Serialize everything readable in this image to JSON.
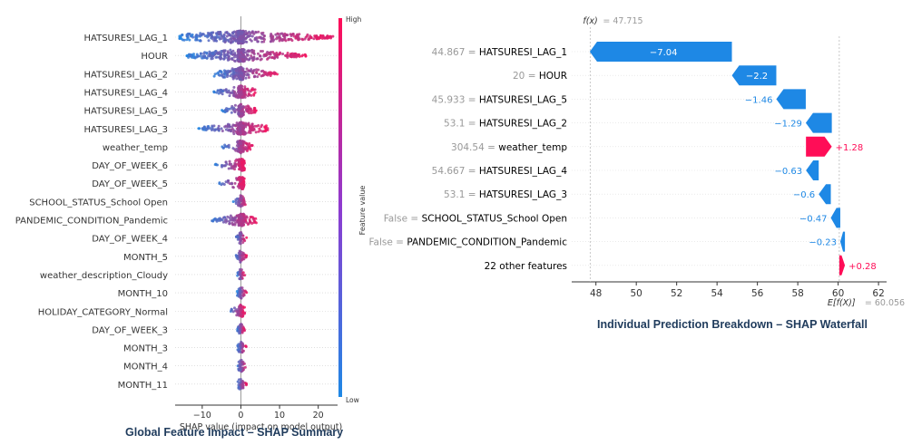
{
  "chart_data": [
    {
      "type": "scatter",
      "subtype": "shap-beeswarm",
      "xlabel": "SHAP value (impact on model output)",
      "xlim": [
        -17,
        25
      ],
      "xticks": [
        -10,
        0,
        10,
        20
      ],
      "features": [
        "HATSURESI_LAG_1",
        "HOUR",
        "HATSURESI_LAG_2",
        "HATSURESI_LAG_4",
        "HATSURESI_LAG_5",
        "HATSURESI_LAG_3",
        "weather_temp",
        "DAY_OF_WEEK_6",
        "DAY_OF_WEEK_5",
        "SCHOOL_STATUS_School Open",
        "PANDEMIC_CONDITION_Pandemic",
        "DAY_OF_WEEK_4",
        "MONTH_5",
        "weather_description_Cloudy",
        "MONTH_10",
        "HOLIDAY_CATEGORY_Normal",
        "DAY_OF_WEEK_3",
        "MONTH_3",
        "MONTH_4",
        "MONTH_11"
      ],
      "shap_range": [
        [
          -16,
          24
        ],
        [
          -14,
          17
        ],
        [
          -7,
          10
        ],
        [
          -7,
          4
        ],
        [
          -5,
          4
        ],
        [
          -11,
          7
        ],
        [
          -5,
          3
        ],
        [
          -7,
          1
        ],
        [
          -6,
          1
        ],
        [
          -2,
          1.5
        ],
        [
          -8,
          4
        ],
        [
          -1.5,
          1.5
        ],
        [
          -1.5,
          1.5
        ],
        [
          -1,
          1
        ],
        [
          -1,
          1.5
        ],
        [
          -3,
          1
        ],
        [
          -1,
          1
        ],
        [
          -1,
          1.5
        ],
        [
          -1,
          1.5
        ],
        [
          -1,
          1.5
        ]
      ],
      "colorbar_label": "Feature value",
      "colorbar_high": "High",
      "colorbar_low": "Low",
      "caption": "Global Feature Impact – SHAP Summary"
    },
    {
      "type": "bar",
      "subtype": "shap-waterfall",
      "fx_label": "f(x)",
      "fx_value": "47.715",
      "fx": 47.715,
      "base_label": "E[f(X)]",
      "base_value": "60.056",
      "base": 60.056,
      "xlim": [
        46.8,
        62.4
      ],
      "xticks": [
        48,
        50,
        52,
        54,
        56,
        58,
        60,
        62
      ],
      "rows": [
        {
          "value": "44.867",
          "feature": "HATSURESI_LAG_1",
          "contrib": -7.04,
          "label": "−7.04"
        },
        {
          "value": "20",
          "feature": "HOUR",
          "contrib": -2.2,
          "label": "−2.2"
        },
        {
          "value": "45.933",
          "feature": "HATSURESI_LAG_5",
          "contrib": -1.46,
          "label": "−1.46"
        },
        {
          "value": "53.1",
          "feature": "HATSURESI_LAG_2",
          "contrib": -1.29,
          "label": "−1.29"
        },
        {
          "value": "304.54",
          "feature": "weather_temp",
          "contrib": 1.28,
          "label": "+1.28"
        },
        {
          "value": "54.667",
          "feature": "HATSURESI_LAG_4",
          "contrib": -0.63,
          "label": "−0.63"
        },
        {
          "value": "53.1",
          "feature": "HATSURESI_LAG_3",
          "contrib": -0.6,
          "label": "−0.6"
        },
        {
          "value": "False",
          "feature": "SCHOOL_STATUS_School Open",
          "contrib": -0.47,
          "label": "−0.47"
        },
        {
          "value": "False",
          "feature": "PANDEMIC_CONDITION_Pandemic",
          "contrib": -0.23,
          "label": "−0.23"
        },
        {
          "value": "",
          "feature": "22 other features",
          "contrib": 0.28,
          "label": "+0.28"
        }
      ],
      "caption": "Individual Prediction Breakdown – SHAP Waterfall"
    }
  ],
  "colors": {
    "positive": "#ff0d57",
    "negative": "#1e88e5",
    "value_text": "#999999",
    "caption": "#1f3b5c"
  }
}
